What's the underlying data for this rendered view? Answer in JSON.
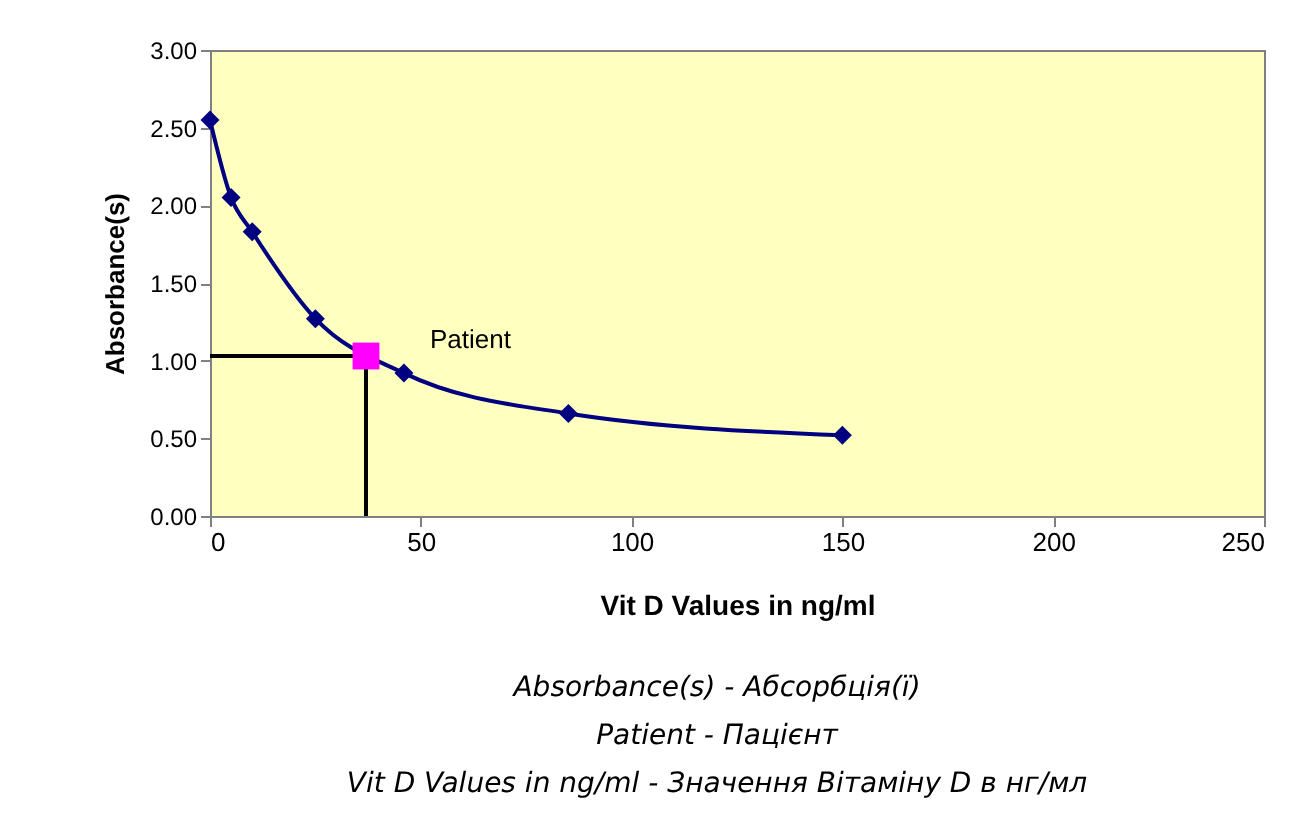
{
  "chart_data": {
    "type": "line",
    "xlabel": "Vit D Values in ng/ml",
    "ylabel": "Absorbance(s)",
    "xlim": [
      0,
      250
    ],
    "ylim": [
      0,
      3
    ],
    "xticks": [
      0,
      50,
      100,
      150,
      200,
      250
    ],
    "yticks": [
      {
        "value": 0,
        "label": "0.00"
      },
      {
        "value": 0.5,
        "label": "0.50"
      },
      {
        "value": 1,
        "label": "1.00"
      },
      {
        "value": 1.5,
        "label": "1.50"
      },
      {
        "value": 2,
        "label": "2.00"
      },
      {
        "value": 2.5,
        "label": "2.50"
      },
      {
        "value": 3,
        "label": "3.00"
      }
    ],
    "grid": false,
    "series": [
      {
        "color": "#000000",
        "marker": "none",
        "x": [
          0,
          37,
          37
        ],
        "values": [
          1.03,
          1.03,
          0
        ]
      },
      {
        "color": "#000080",
        "marker": "diamond",
        "x": [
          0,
          5,
          10,
          25,
          46,
          85,
          150
        ],
        "values": [
          2.55,
          2.05,
          1.83,
          1.27,
          0.92,
          0.66,
          0.52
        ]
      },
      {
        "type": "scatter",
        "color": "#ff00ff",
        "marker": "square",
        "x": [
          37
        ],
        "values": [
          1.03
        ]
      }
    ],
    "annotations": [
      {
        "text": "Patient",
        "x": 37,
        "y": 1.03
      },
      "Absorbance(s) - Абсорбція(ї)",
      "Patient - Пацієнт",
      "Vit D Values in ng/ml - Значення Вітаміну D в нг/мл"
    ]
  }
}
